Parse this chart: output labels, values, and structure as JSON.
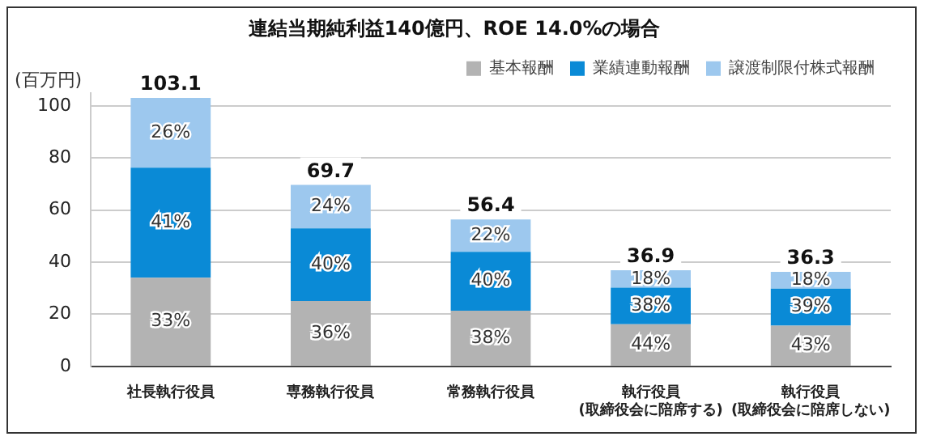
{
  "chart_data": {
    "type": "bar",
    "title": "連結当期純利益140億円、ROE 14.0%の場合",
    "ylabel": "(百万円)",
    "categories": [
      "社長執行役員",
      "専務執行役員",
      "常務執行役員",
      "執行役員\n(取締役会に陪席する)",
      "執行役員\n(取締役会に陪席しない)"
    ],
    "stacked": true,
    "series": [
      {
        "name": "基本報酬",
        "color": "#b3b3b3",
        "values": [
          34.0,
          25.1,
          21.4,
          16.2,
          15.6
        ]
      },
      {
        "name": "業績連動報酬",
        "color": "#0a8ad6",
        "values": [
          42.3,
          27.9,
          22.6,
          14.0,
          14.2
        ]
      },
      {
        "name": "譲渡制限付株式報酬",
        "color": "#9dc8ee",
        "values": [
          26.8,
          16.7,
          12.4,
          6.7,
          6.5
        ]
      }
    ],
    "annotations": [
      "33%",
      "36%",
      "38%",
      "44%",
      "43%",
      "41%",
      "40%",
      "40%",
      "38%",
      "39%",
      "26%",
      "24%",
      "22%",
      "18%",
      "18%"
    ],
    "totals": [
      "103.1",
      "69.7",
      "56.4",
      "36.9",
      "36.3"
    ],
    "ylim": [
      0,
      105
    ],
    "yticks": [
      0,
      20,
      40,
      60,
      80,
      100
    ],
    "grid": "y",
    "legend": "top right"
  }
}
